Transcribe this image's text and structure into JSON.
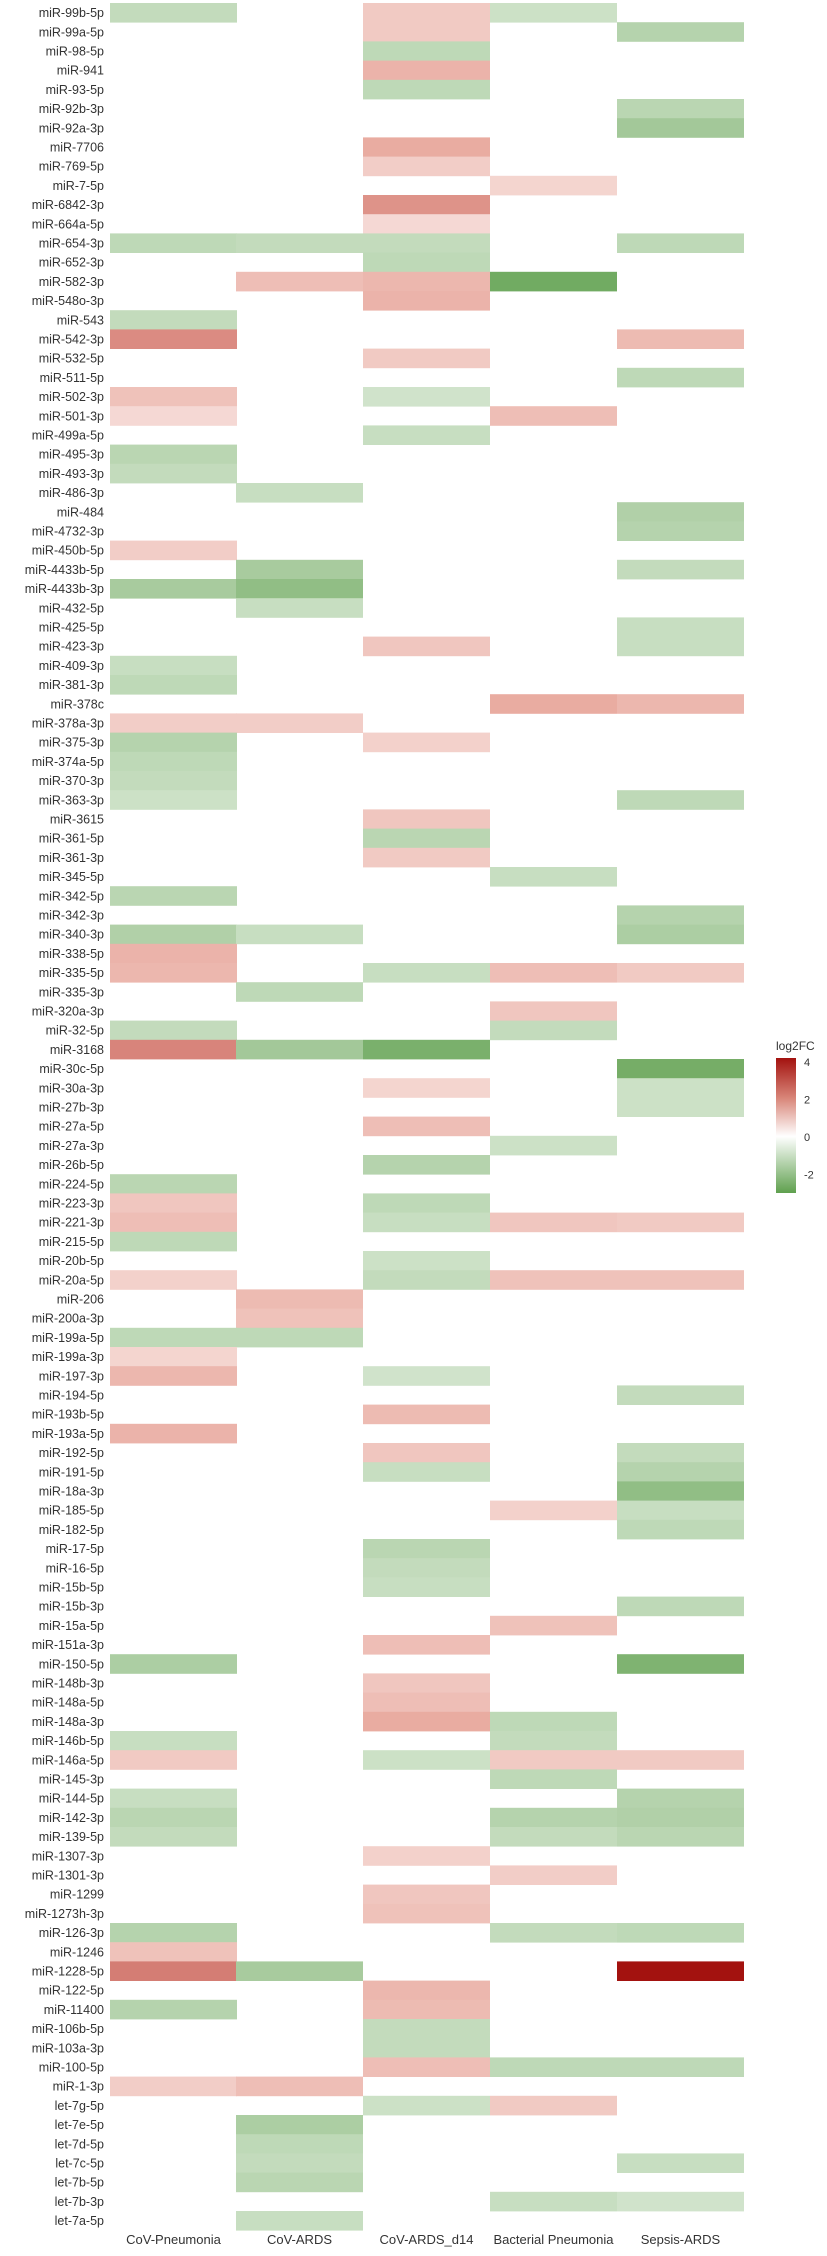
{
  "chart_data": {
    "type": "heatmap",
    "legend": {
      "title": "log2FC",
      "ticks": [
        4,
        2,
        0,
        -2
      ],
      "range": [
        -3,
        4.2
      ],
      "low_color": "#5fa04e",
      "mid_color": "#ffffff",
      "high_color": "#a3120f"
    },
    "columns": [
      "CoV-Pneumonia",
      "CoV-ARDS",
      "CoV-ARDS_d14",
      "Bacterial Pneumonia",
      "Sepsis-ARDS"
    ],
    "rows": [
      {
        "label": "miR-99b-5p",
        "values": [
          -0.8,
          null,
          1.2,
          -0.6,
          null
        ]
      },
      {
        "label": "miR-99a-5p",
        "values": [
          null,
          null,
          1.2,
          null,
          -1.1
        ]
      },
      {
        "label": "miR-98-5p",
        "values": [
          null,
          null,
          -0.9,
          null,
          null
        ]
      },
      {
        "label": "miR-941",
        "values": [
          null,
          null,
          1.8,
          null,
          null
        ]
      },
      {
        "label": "miR-93-5p",
        "values": [
          null,
          null,
          -0.9,
          null,
          null
        ]
      },
      {
        "label": "miR-92b-3p",
        "values": [
          null,
          null,
          null,
          null,
          -1.0
        ]
      },
      {
        "label": "miR-92a-3p",
        "values": [
          null,
          null,
          null,
          null,
          -1.5
        ]
      },
      {
        "label": "miR-7706",
        "values": [
          null,
          null,
          2.0,
          null,
          null
        ]
      },
      {
        "label": "miR-769-5p",
        "values": [
          null,
          null,
          1.1,
          null,
          null
        ]
      },
      {
        "label": "miR-7-5p",
        "values": [
          null,
          null,
          null,
          0.9,
          null
        ]
      },
      {
        "label": "miR-6842-3p",
        "values": [
          null,
          null,
          2.4,
          null,
          null
        ]
      },
      {
        "label": "miR-664a-5p",
        "values": [
          null,
          null,
          0.8,
          null,
          null
        ]
      },
      {
        "label": "miR-654-3p",
        "values": [
          -0.9,
          -0.8,
          -0.8,
          null,
          -0.9
        ]
      },
      {
        "label": "miR-652-3p",
        "values": [
          null,
          null,
          -0.9,
          null,
          null
        ]
      },
      {
        "label": "miR-582-3p",
        "values": [
          null,
          1.5,
          1.7,
          -2.6,
          null
        ]
      },
      {
        "label": "miR-548o-3p",
        "values": [
          null,
          null,
          1.8,
          null,
          null
        ]
      },
      {
        "label": "miR-543",
        "values": [
          -0.8,
          null,
          null,
          null,
          null
        ]
      },
      {
        "label": "miR-542-3p",
        "values": [
          2.5,
          null,
          null,
          null,
          1.6
        ]
      },
      {
        "label": "miR-532-5p",
        "values": [
          null,
          null,
          1.2,
          null,
          null
        ]
      },
      {
        "label": "miR-511-5p",
        "values": [
          null,
          null,
          null,
          null,
          -0.9
        ]
      },
      {
        "label": "miR-502-3p",
        "values": [
          1.4,
          null,
          -0.5,
          null,
          null
        ]
      },
      {
        "label": "miR-501-3p",
        "values": [
          0.8,
          null,
          null,
          1.5,
          null
        ]
      },
      {
        "label": "miR-499a-5p",
        "values": [
          null,
          null,
          -0.7,
          null,
          null
        ]
      },
      {
        "label": "miR-495-3p",
        "values": [
          -1.0,
          null,
          null,
          null,
          null
        ]
      },
      {
        "label": "miR-493-3p",
        "values": [
          -0.8,
          null,
          null,
          null,
          null
        ]
      },
      {
        "label": "miR-486-3p",
        "values": [
          null,
          -0.7,
          null,
          null,
          null
        ]
      },
      {
        "label": "miR-484",
        "values": [
          null,
          null,
          null,
          null,
          -1.2
        ]
      },
      {
        "label": "miR-4732-3p",
        "values": [
          null,
          null,
          null,
          null,
          -1.1
        ]
      },
      {
        "label": "miR-450b-5p",
        "values": [
          1.1,
          null,
          null,
          null,
          null
        ]
      },
      {
        "label": "miR-4433b-5p",
        "values": [
          null,
          -1.4,
          null,
          null,
          -0.8
        ]
      },
      {
        "label": "miR-4433b-3p",
        "values": [
          -1.4,
          -1.9,
          null,
          null,
          null
        ]
      },
      {
        "label": "miR-432-5p",
        "values": [
          null,
          -0.7,
          null,
          null,
          null
        ]
      },
      {
        "label": "miR-425-5p",
        "values": [
          null,
          null,
          null,
          null,
          -0.7
        ]
      },
      {
        "label": "miR-423-3p",
        "values": [
          null,
          null,
          1.3,
          null,
          -0.7
        ]
      },
      {
        "label": "miR-409-3p",
        "values": [
          -0.7,
          null,
          null,
          null,
          null
        ]
      },
      {
        "label": "miR-381-3p",
        "values": [
          -0.9,
          null,
          null,
          null,
          null
        ]
      },
      {
        "label": "miR-378c",
        "values": [
          null,
          null,
          null,
          2.0,
          1.7
        ]
      },
      {
        "label": "miR-378a-3p",
        "values": [
          1.1,
          1.1,
          null,
          null,
          null
        ]
      },
      {
        "label": "miR-375-3p",
        "values": [
          -1.1,
          null,
          1.0,
          null,
          null
        ]
      },
      {
        "label": "miR-374a-5p",
        "values": [
          -0.9,
          null,
          null,
          null,
          null
        ]
      },
      {
        "label": "miR-370-3p",
        "values": [
          -0.8,
          null,
          null,
          null,
          null
        ]
      },
      {
        "label": "miR-363-3p",
        "values": [
          -0.6,
          null,
          null,
          null,
          -0.9
        ]
      },
      {
        "label": "miR-3615",
        "values": [
          null,
          null,
          1.3,
          null,
          null
        ]
      },
      {
        "label": "miR-361-5p",
        "values": [
          null,
          null,
          -1.0,
          null,
          null
        ]
      },
      {
        "label": "miR-361-3p",
        "values": [
          null,
          null,
          1.2,
          null,
          null
        ]
      },
      {
        "label": "miR-345-5p",
        "values": [
          null,
          null,
          null,
          -0.7,
          null
        ]
      },
      {
        "label": "miR-342-5p",
        "values": [
          -1.0,
          null,
          null,
          null,
          null
        ]
      },
      {
        "label": "miR-342-3p",
        "values": [
          null,
          null,
          null,
          null,
          -1.1
        ]
      },
      {
        "label": "miR-340-3p",
        "values": [
          -1.2,
          -0.7,
          null,
          null,
          -1.3
        ]
      },
      {
        "label": "miR-338-5p",
        "values": [
          1.8,
          null,
          null,
          null,
          null
        ]
      },
      {
        "label": "miR-335-5p",
        "values": [
          1.7,
          null,
          -0.7,
          1.5,
          1.2
        ]
      },
      {
        "label": "miR-335-3p",
        "values": [
          null,
          -0.9,
          null,
          null,
          null
        ]
      },
      {
        "label": "miR-320a-3p",
        "values": [
          null,
          null,
          null,
          1.3,
          null
        ]
      },
      {
        "label": "miR-32-5p",
        "values": [
          -0.8,
          null,
          null,
          -0.8,
          null
        ]
      },
      {
        "label": "miR-3168",
        "values": [
          2.6,
          -1.5,
          -2.4,
          null,
          null
        ]
      },
      {
        "label": "miR-30c-5p",
        "values": [
          null,
          null,
          null,
          null,
          -2.5
        ]
      },
      {
        "label": "miR-30a-3p",
        "values": [
          null,
          null,
          0.9,
          null,
          -0.6
        ]
      },
      {
        "label": "miR-27b-3p",
        "values": [
          null,
          null,
          null,
          null,
          -0.6
        ]
      },
      {
        "label": "miR-27a-5p",
        "values": [
          null,
          null,
          1.5,
          null,
          null
        ]
      },
      {
        "label": "miR-27a-3p",
        "values": [
          null,
          null,
          null,
          -0.6,
          null
        ]
      },
      {
        "label": "miR-26b-5p",
        "values": [
          null,
          null,
          -1.1,
          null,
          null
        ]
      },
      {
        "label": "miR-224-5p",
        "values": [
          -1.0,
          null,
          null,
          null,
          null
        ]
      },
      {
        "label": "miR-223-3p",
        "values": [
          1.3,
          null,
          -0.9,
          null,
          null
        ]
      },
      {
        "label": "miR-221-3p",
        "values": [
          1.5,
          null,
          -0.7,
          1.3,
          1.2
        ]
      },
      {
        "label": "miR-215-5p",
        "values": [
          -0.9,
          null,
          null,
          null,
          null
        ]
      },
      {
        "label": "miR-20b-5p",
        "values": [
          null,
          null,
          -0.6,
          null,
          null
        ]
      },
      {
        "label": "miR-20a-5p",
        "values": [
          1.0,
          null,
          -0.8,
          1.4,
          1.4
        ]
      },
      {
        "label": "miR-206",
        "values": [
          null,
          1.6,
          null,
          null,
          null
        ]
      },
      {
        "label": "miR-200a-3p",
        "values": [
          null,
          1.4,
          null,
          null,
          null
        ]
      },
      {
        "label": "miR-199a-5p",
        "values": [
          -0.9,
          -0.9,
          null,
          null,
          null
        ]
      },
      {
        "label": "miR-199a-3p",
        "values": [
          0.9,
          null,
          null,
          null,
          null
        ]
      },
      {
        "label": "miR-197-3p",
        "values": [
          1.7,
          null,
          -0.5,
          null,
          null
        ]
      },
      {
        "label": "miR-194-5p",
        "values": [
          null,
          null,
          null,
          null,
          -0.8
        ]
      },
      {
        "label": "miR-193b-5p",
        "values": [
          null,
          null,
          1.6,
          null,
          null
        ]
      },
      {
        "label": "miR-193a-5p",
        "values": [
          1.8,
          null,
          null,
          null,
          null
        ]
      },
      {
        "label": "miR-192-5p",
        "values": [
          null,
          null,
          1.3,
          null,
          -0.8
        ]
      },
      {
        "label": "miR-191-5p",
        "values": [
          null,
          null,
          -0.7,
          null,
          -1.1
        ]
      },
      {
        "label": "miR-18a-3p",
        "values": [
          null,
          null,
          null,
          null,
          -1.9
        ]
      },
      {
        "label": "miR-185-5p",
        "values": [
          null,
          null,
          null,
          1.0,
          -0.7
        ]
      },
      {
        "label": "miR-182-5p",
        "values": [
          null,
          null,
          null,
          null,
          -0.9
        ]
      },
      {
        "label": "miR-17-5p",
        "values": [
          null,
          null,
          -1.0,
          null,
          null
        ]
      },
      {
        "label": "miR-16-5p",
        "values": [
          null,
          null,
          -0.8,
          null,
          null
        ]
      },
      {
        "label": "miR-15b-5p",
        "values": [
          null,
          null,
          -0.7,
          null,
          null
        ]
      },
      {
        "label": "miR-15b-3p",
        "values": [
          null,
          null,
          null,
          null,
          -0.9
        ]
      },
      {
        "label": "miR-15a-5p",
        "values": [
          null,
          null,
          null,
          1.4,
          null
        ]
      },
      {
        "label": "miR-151a-3p",
        "values": [
          null,
          null,
          1.5,
          null,
          null
        ]
      },
      {
        "label": "miR-150-5p",
        "values": [
          -1.3,
          null,
          null,
          null,
          -2.3
        ]
      },
      {
        "label": "miR-148b-3p",
        "values": [
          null,
          null,
          1.3,
          null,
          null
        ]
      },
      {
        "label": "miR-148a-5p",
        "values": [
          null,
          null,
          1.5,
          null,
          null
        ]
      },
      {
        "label": "miR-148a-3p",
        "values": [
          null,
          null,
          2.0,
          -0.9,
          null
        ]
      },
      {
        "label": "miR-146b-5p",
        "values": [
          -0.7,
          null,
          null,
          -0.8,
          null
        ]
      },
      {
        "label": "miR-146a-5p",
        "values": [
          1.2,
          null,
          -0.6,
          1.2,
          1.2
        ]
      },
      {
        "label": "miR-145-3p",
        "values": [
          null,
          null,
          null,
          -0.9,
          null
        ]
      },
      {
        "label": "miR-144-5p",
        "values": [
          -0.7,
          null,
          null,
          null,
          -1.1
        ]
      },
      {
        "label": "miR-142-3p",
        "values": [
          -1.0,
          null,
          null,
          -1.1,
          -1.2
        ]
      },
      {
        "label": "miR-139-5p",
        "values": [
          -0.8,
          null,
          null,
          -0.8,
          -1.0
        ]
      },
      {
        "label": "miR-1307-3p",
        "values": [
          null,
          null,
          1.0,
          null,
          null
        ]
      },
      {
        "label": "miR-1301-3p",
        "values": [
          null,
          null,
          null,
          1.1,
          null
        ]
      },
      {
        "label": "miR-1299",
        "values": [
          null,
          null,
          1.3,
          null,
          null
        ]
      },
      {
        "label": "miR-1273h-3p",
        "values": [
          null,
          null,
          1.4,
          null,
          null
        ]
      },
      {
        "label": "miR-126-3p",
        "values": [
          -1.1,
          null,
          null,
          -0.8,
          -0.9
        ]
      },
      {
        "label": "miR-1246",
        "values": [
          1.4,
          null,
          null,
          null,
          null
        ]
      },
      {
        "label": "miR-1228-5p",
        "values": [
          2.7,
          -1.4,
          null,
          null,
          4.2
        ]
      },
      {
        "label": "miR-122-5p",
        "values": [
          null,
          null,
          1.7,
          null,
          null
        ]
      },
      {
        "label": "miR-11400",
        "values": [
          -1.1,
          null,
          1.6,
          null,
          null
        ]
      },
      {
        "label": "miR-106b-5p",
        "values": [
          null,
          null,
          -0.8,
          null,
          null
        ]
      },
      {
        "label": "miR-103a-3p",
        "values": [
          null,
          null,
          -0.8,
          null,
          null
        ]
      },
      {
        "label": "miR-100-5p",
        "values": [
          null,
          null,
          1.5,
          -0.9,
          -0.9
        ]
      },
      {
        "label": "miR-1-3p",
        "values": [
          1.1,
          1.5,
          null,
          null,
          null
        ]
      },
      {
        "label": "let-7g-5p",
        "values": [
          null,
          null,
          -0.6,
          1.2,
          null
        ]
      },
      {
        "label": "let-7e-5p",
        "values": [
          null,
          -1.3,
          null,
          null,
          null
        ]
      },
      {
        "label": "let-7d-5p",
        "values": [
          null,
          -0.9,
          null,
          null,
          null
        ]
      },
      {
        "label": "let-7c-5p",
        "values": [
          null,
          -0.8,
          null,
          null,
          -0.7
        ]
      },
      {
        "label": "let-7b-5p",
        "values": [
          null,
          -1.0,
          null,
          null,
          null
        ]
      },
      {
        "label": "let-7b-3p",
        "values": [
          null,
          null,
          null,
          -0.7,
          -0.5
        ]
      },
      {
        "label": "let-7a-5p",
        "values": [
          null,
          -0.7,
          null,
          null,
          null
        ]
      }
    ]
  }
}
